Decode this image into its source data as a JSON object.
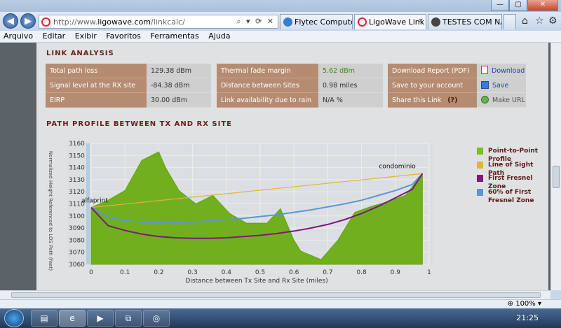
{
  "browser": {
    "url_prefix": "http://www.",
    "url_domain": "ligowave.com",
    "url_path": "/linkcalc/",
    "tabs": [
      {
        "label": "Flytec Computers",
        "active": false
      },
      {
        "label": "LigoWave Link ...",
        "active": true
      },
      {
        "label": "TESTES COM NA...",
        "active": false
      }
    ],
    "menu": [
      "Arquivo",
      "Editar",
      "Exibir",
      "Favoritos",
      "Ferramentas",
      "Ajuda"
    ],
    "zoom": "100%",
    "clock": "21:25"
  },
  "link_analysis": {
    "title": "LINK ANALYSIS",
    "col1": [
      {
        "label": "Total path loss",
        "value": "129.38 dBm"
      },
      {
        "label": "Signal level at the RX site",
        "value": "-84.38 dBm"
      },
      {
        "label": "EIRP",
        "value": "30.00 dBm"
      }
    ],
    "col2": [
      {
        "label": "Thermal fade margin",
        "value": "5.62 dBm"
      },
      {
        "label": "Distance between Sites",
        "value": "0.98 miles"
      },
      {
        "label": "Link availability due to rain",
        "value": "N/A %"
      }
    ],
    "col3": [
      {
        "label": "Download Report (PDF)",
        "action": "Download"
      },
      {
        "label": "Save to your account",
        "action": "Save"
      },
      {
        "label": "Share this Link",
        "help": "(?)",
        "action": "Make URL"
      }
    ]
  },
  "path_profile": {
    "title": "PATH PROFILE BETWEEN TX AND RX SITE"
  },
  "colors": {
    "profile": "#7dbd22",
    "los": "#e2b437",
    "fresnel": "#7b1a78",
    "fresnel60": "#5b95d8"
  },
  "chart_data": {
    "type": "area",
    "xlabel": "Distance between Tx Site and Rx Site (miles)",
    "ylabel": "Normalized Height Referenced to LOS Path (feet)",
    "xlim": [
      0,
      1
    ],
    "ylim": [
      3060,
      3160
    ],
    "x_ticks": [
      "0",
      "0.1",
      "0.2",
      "0.3",
      "0.4",
      "0.5",
      "0.6",
      "0.7",
      "0.8",
      "0.9",
      "1"
    ],
    "y_ticks": [
      "3160",
      "3150",
      "3140",
      "3130",
      "3120",
      "3110",
      "3100",
      "3090",
      "3080",
      "3070",
      "3060"
    ],
    "site_labels": {
      "tx": "alfaprint",
      "rx": "condominio"
    },
    "legend": [
      "Point-to-Point Profile",
      "Line of Sight Path",
      "First Fresnel Zone",
      "60% of First Fresnel Zone"
    ],
    "series": [
      {
        "name": "Point-to-Point Profile",
        "x": [
          0,
          0.05,
          0.1,
          0.15,
          0.2,
          0.22,
          0.26,
          0.31,
          0.36,
          0.41,
          0.46,
          0.52,
          0.56,
          0.6,
          0.62,
          0.68,
          0.73,
          0.78,
          0.83,
          0.88,
          0.93,
          0.98
        ],
        "y": [
          3107,
          3113,
          3121,
          3146,
          3153,
          3140,
          3121,
          3110,
          3117,
          3102,
          3094,
          3094,
          3106,
          3080,
          3071,
          3064,
          3080,
          3103,
          3108,
          3112,
          3117,
          3135
        ]
      },
      {
        "name": "Line of Sight Path",
        "x": [
          0,
          0.98
        ],
        "y": [
          3107,
          3135
        ]
      },
      {
        "name": "First Fresnel Zone",
        "x": [
          0,
          0.05,
          0.1,
          0.15,
          0.2,
          0.25,
          0.3,
          0.35,
          0.4,
          0.45,
          0.5,
          0.55,
          0.6,
          0.65,
          0.7,
          0.75,
          0.8,
          0.85,
          0.9,
          0.95,
          0.98
        ],
        "y": [
          3107,
          3092,
          3088,
          3085,
          3083,
          3082,
          3081.5,
          3081.5,
          3082,
          3083,
          3084,
          3085.5,
          3087.5,
          3090,
          3093,
          3097,
          3102,
          3108,
          3115,
          3122,
          3135
        ]
      },
      {
        "name": "60% of First Fresnel Zone",
        "x": [
          0,
          0.05,
          0.1,
          0.15,
          0.2,
          0.25,
          0.3,
          0.35,
          0.4,
          0.45,
          0.5,
          0.55,
          0.6,
          0.65,
          0.7,
          0.75,
          0.8,
          0.85,
          0.9,
          0.95,
          0.98
        ],
        "y": [
          3107,
          3099,
          3096,
          3095,
          3094.5,
          3094.5,
          3095,
          3096,
          3097,
          3098,
          3099.5,
          3101,
          3103,
          3105,
          3107.5,
          3110,
          3113,
          3117,
          3121,
          3126,
          3135
        ]
      }
    ]
  }
}
